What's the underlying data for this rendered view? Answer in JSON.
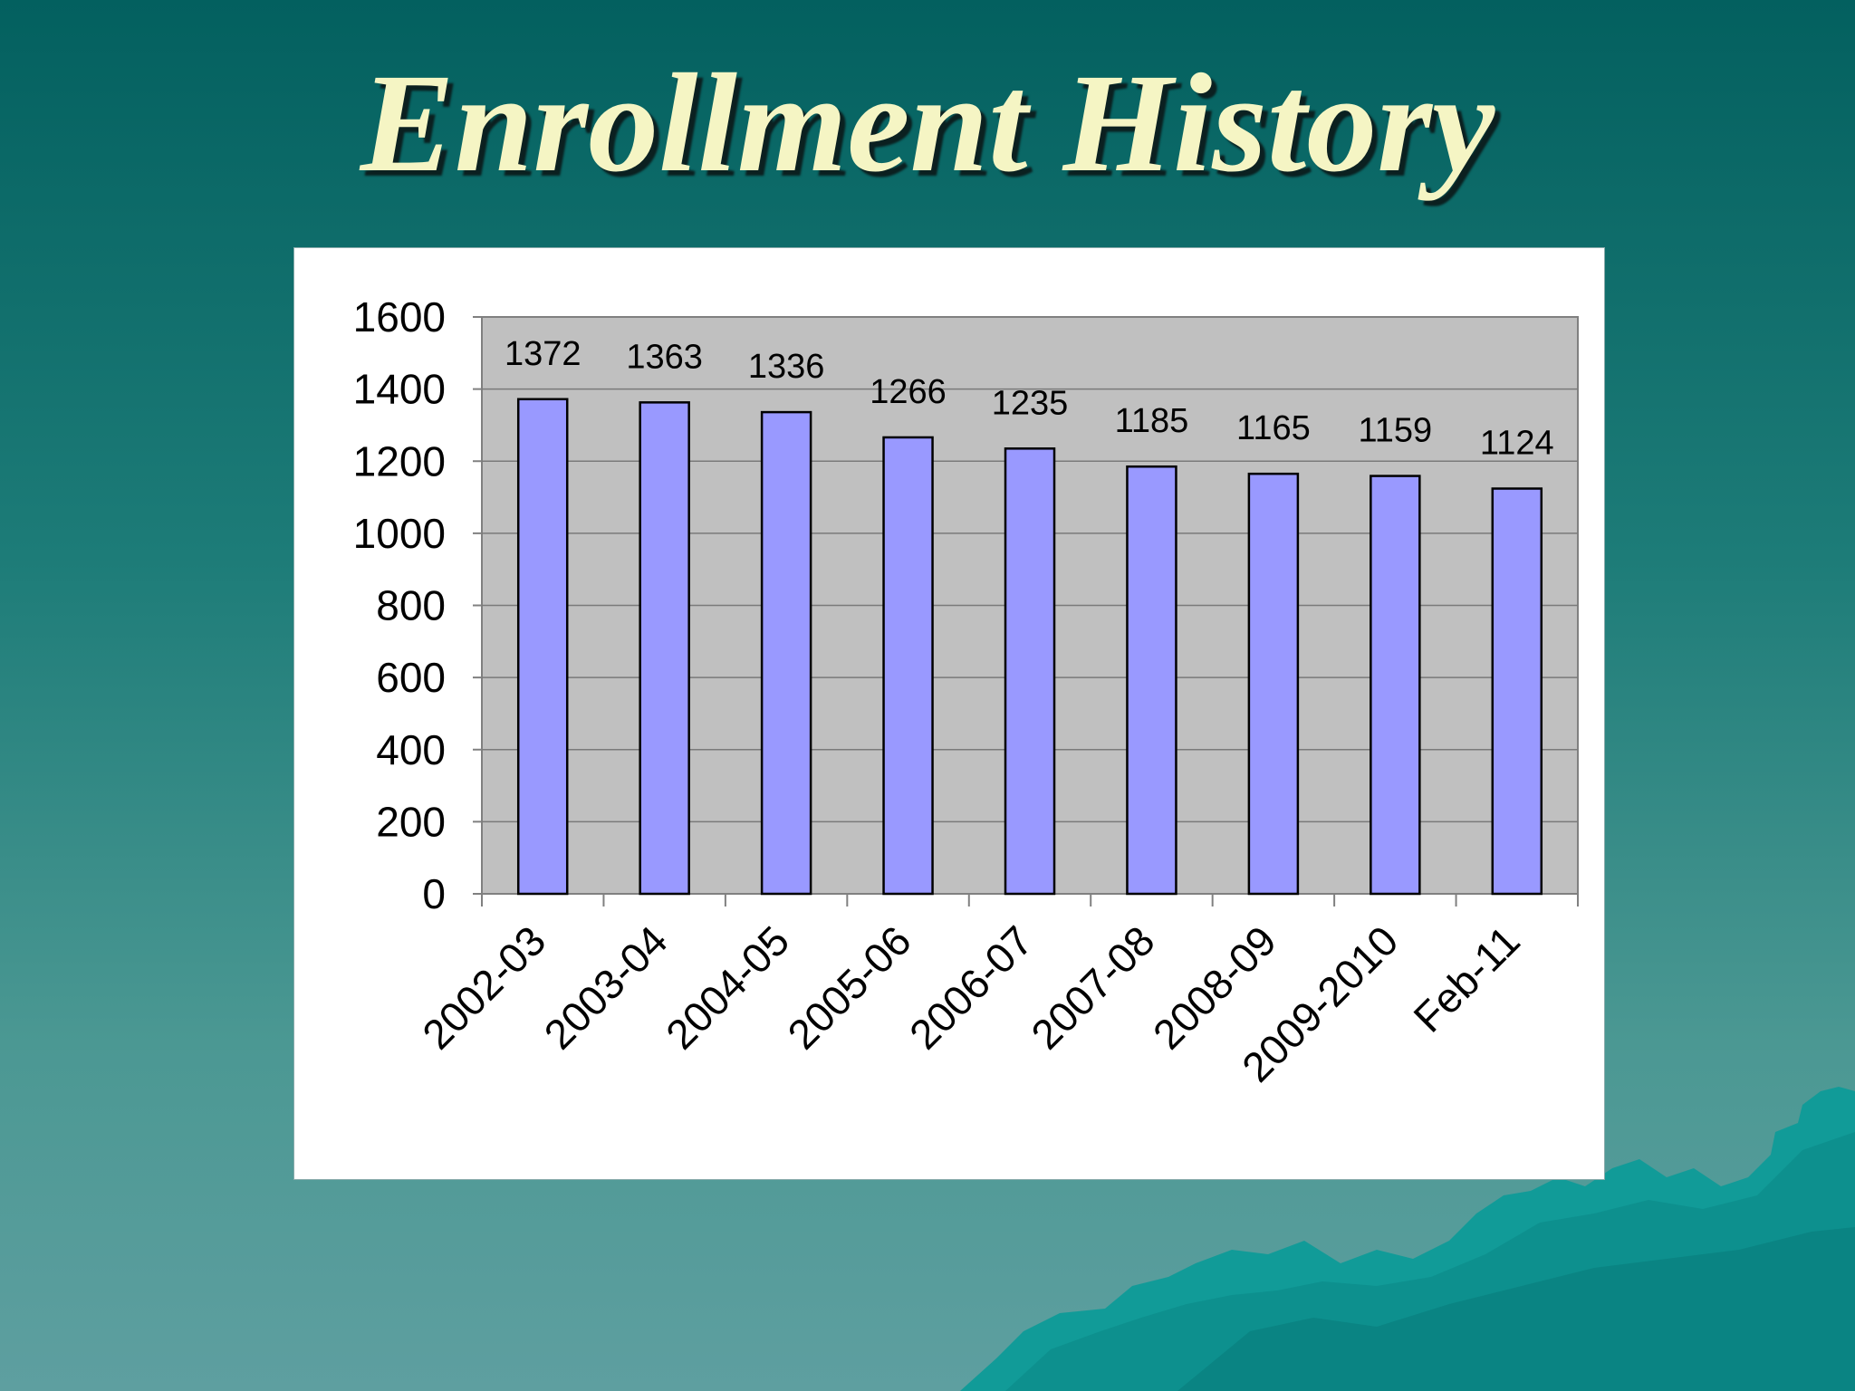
{
  "slide": {
    "title": "Enrollment History"
  },
  "colors": {
    "background_top": "#03605f",
    "background_bottom": "#5e9fa0",
    "title": "#f5f5c4",
    "bar_fill": "#9999ff",
    "plot_area": "#c0c0c0",
    "mountain": "#0f9a96"
  },
  "chart_data": {
    "type": "bar",
    "title": "",
    "xlabel": "",
    "ylabel": "",
    "categories": [
      "2002-03",
      "2003-04",
      "2004-05",
      "2005-06",
      "2006-07",
      "2007-08",
      "2008-09",
      "2009-2010",
      "Feb-11"
    ],
    "values": [
      1372,
      1363,
      1336,
      1266,
      1235,
      1185,
      1165,
      1159,
      1124
    ],
    "data_labels": [
      "1372",
      "1363",
      "1336",
      "1266",
      "1235",
      "1185",
      "1165",
      "1159",
      "1124"
    ],
    "yticks": [
      "0",
      "200",
      "400",
      "600",
      "800",
      "1000",
      "1200",
      "1400",
      "1600"
    ],
    "ylim": [
      0,
      1600
    ],
    "grid": true,
    "legend": "none"
  }
}
